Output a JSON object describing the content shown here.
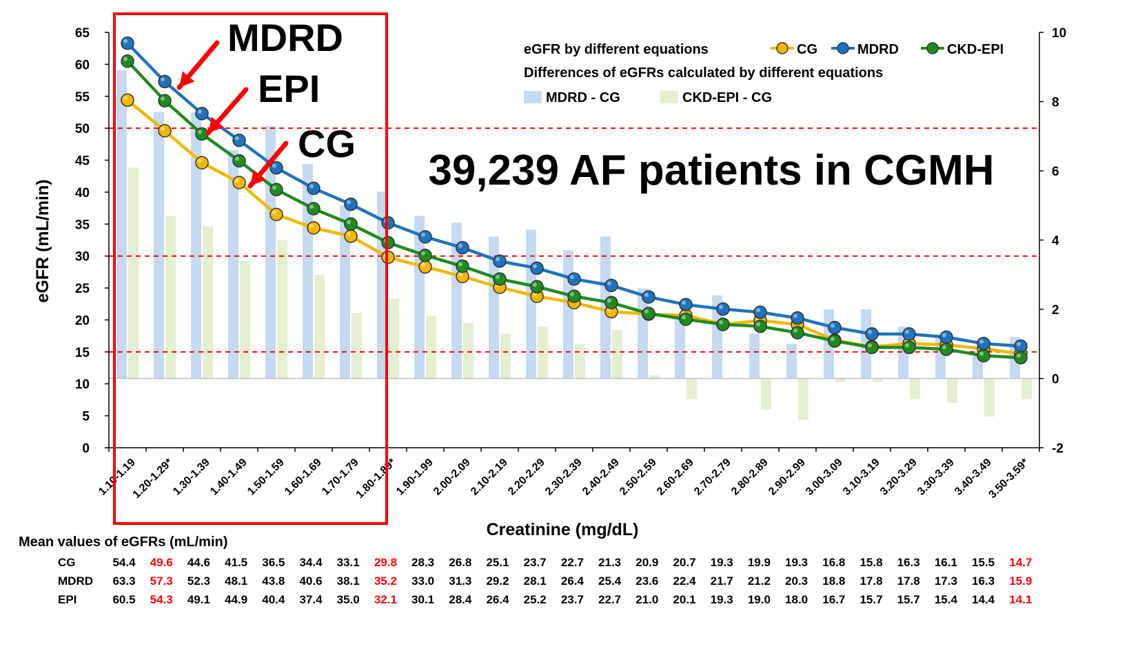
{
  "chart_data": {
    "type": "line",
    "categories": [
      "1.10-1.19",
      "1.20-1.29*",
      "1.30-1.39",
      "1.40-1.49",
      "1.50-1.59",
      "1.60-1.69",
      "1.70-1.79",
      "1.80-1.89*",
      "1.90-1.99",
      "2.00-2.09",
      "2.10-2.19",
      "2.20-2.29",
      "2.30-2.39",
      "2.40-2.49",
      "2.50-2.59",
      "2.60-2.69",
      "2.70-2.79",
      "2.80-2.89",
      "2.90-2.99",
      "3.00-3.09",
      "3.10-3.19",
      "3.20-3.29",
      "3.30-3.39",
      "3.40-3.49",
      "3.50-3.59*"
    ],
    "xlabel": "Creatinine (mg/dL)",
    "ylabel": "eGFR (mL/min)",
    "ylim": [
      0,
      65
    ],
    "yticks": [
      0,
      5,
      10,
      15,
      20,
      25,
      30,
      35,
      40,
      45,
      50,
      55,
      60,
      65
    ],
    "y2lim": [
      -2,
      10
    ],
    "y2ticks": [
      -2,
      0,
      2,
      4,
      6,
      8,
      10
    ],
    "reference_lines_y": [
      15,
      30,
      50
    ],
    "line_legend_title": "eGFR by different equations",
    "bar_legend_title": "Differences of eGFRs calculated by different equations",
    "line_series": [
      {
        "name": "CG",
        "color": "#F2B800",
        "values": [
          54.4,
          49.6,
          44.6,
          41.5,
          36.5,
          34.4,
          33.1,
          29.8,
          28.3,
          26.8,
          25.1,
          23.7,
          22.7,
          21.3,
          20.9,
          20.7,
          19.3,
          19.9,
          19.3,
          16.8,
          15.8,
          16.3,
          16.1,
          15.5,
          14.7
        ]
      },
      {
        "name": "MDRD",
        "color": "#1E73BE",
        "values": [
          63.3,
          57.3,
          52.3,
          48.1,
          43.8,
          40.6,
          38.1,
          35.2,
          33.0,
          31.3,
          29.2,
          28.1,
          26.4,
          25.4,
          23.6,
          22.4,
          21.7,
          21.2,
          20.3,
          18.8,
          17.8,
          17.8,
          17.3,
          16.3,
          15.9
        ]
      },
      {
        "name": "CKD-EPI",
        "color": "#1E8C1E",
        "values": [
          60.5,
          54.3,
          49.1,
          44.9,
          40.4,
          37.4,
          35.0,
          32.1,
          30.1,
          28.4,
          26.4,
          25.2,
          23.7,
          22.7,
          21.0,
          20.1,
          19.3,
          19.0,
          18.0,
          16.7,
          15.7,
          15.7,
          15.4,
          14.4,
          14.1
        ]
      }
    ],
    "bar_series": [
      {
        "name": "MDRD - CG",
        "color": "#C5D9F1",
        "values": [
          8.9,
          7.7,
          7.7,
          6.6,
          7.3,
          6.2,
          5.0,
          5.4,
          4.7,
          4.5,
          4.1,
          4.3,
          3.7,
          4.1,
          2.6,
          1.7,
          2.4,
          1.3,
          1.0,
          2.0,
          2.0,
          1.5,
          1.2,
          0.8,
          1.2
        ]
      },
      {
        "name": "CKD-EPI - CG",
        "color": "#E4EFD0",
        "values": [
          6.1,
          4.7,
          4.4,
          3.4,
          4.0,
          3.0,
          1.9,
          2.3,
          1.8,
          1.6,
          1.3,
          1.5,
          1.0,
          1.4,
          0.1,
          -0.6,
          0.0,
          -0.9,
          -1.2,
          -0.1,
          -0.1,
          -0.6,
          -0.7,
          -1.1,
          -0.6
        ]
      }
    ],
    "annotations": {
      "big_title": "39,239 AF patients in CGMH",
      "label_mdrd": "MDRD",
      "label_epi": "EPI",
      "label_cg": "CG"
    },
    "table": {
      "title": "Mean values of eGFRs (mL/min)",
      "highlight_color": "#FF0000",
      "highlight_columns": [
        1,
        7,
        24
      ],
      "rows": [
        {
          "label": "CG",
          "values": [
            "54.4",
            "49.6",
            "44.6",
            "41.5",
            "36.5",
            "34.4",
            "33.1",
            "29.8",
            "28.3",
            "26.8",
            "25.1",
            "23.7",
            "22.7",
            "21.3",
            "20.9",
            "20.7",
            "19.3",
            "19.9",
            "19.3",
            "16.8",
            "15.8",
            "16.3",
            "16.1",
            "15.5",
            "14.7"
          ]
        },
        {
          "label": "MDRD",
          "values": [
            "63.3",
            "57.3",
            "52.3",
            "48.1",
            "43.8",
            "40.6",
            "38.1",
            "35.2",
            "33.0",
            "31.3",
            "29.2",
            "28.1",
            "26.4",
            "25.4",
            "23.6",
            "22.4",
            "21.7",
            "21.2",
            "20.3",
            "18.8",
            "17.8",
            "17.8",
            "17.3",
            "16.3",
            "15.9"
          ]
        },
        {
          "label": "EPI",
          "values": [
            "60.5",
            "54.3",
            "49.1",
            "44.9",
            "40.4",
            "37.4",
            "35.0",
            "32.1",
            "30.1",
            "28.4",
            "26.4",
            "25.2",
            "23.7",
            "22.7",
            "21.0",
            "20.1",
            "19.3",
            "19.0",
            "18.0",
            "16.7",
            "15.7",
            "15.7",
            "15.4",
            "14.4",
            "14.1"
          ]
        }
      ]
    }
  }
}
